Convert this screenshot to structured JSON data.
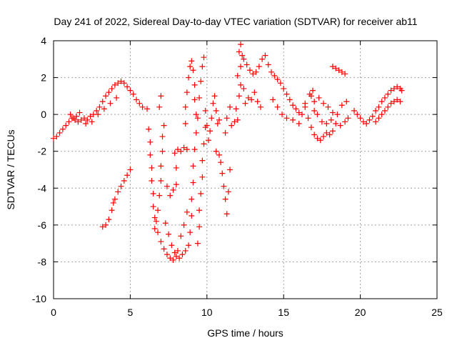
{
  "chart_data": {
    "type": "scatter",
    "title": "Day 241 of 2022, Sidereal Day-to-day VTEC variation (SDTVAR) for receiver ab11",
    "xlabel": "GPS time / hours",
    "ylabel": "SDTVAR / TECUs",
    "xlim": [
      0,
      25
    ],
    "ylim": [
      -10,
      4
    ],
    "xticks": [
      "0",
      "5",
      "10",
      "15",
      "20",
      "25"
    ],
    "yticks": [
      "-10",
      "-8",
      "-6",
      "-4",
      "-2",
      "0",
      "2",
      "4"
    ],
    "grid": true,
    "marker": "plus",
    "marker_color": "#ff0000",
    "series": [
      {
        "name": "ab11",
        "points": [
          [
            0.0,
            -1.3
          ],
          [
            0.2,
            -1.2
          ],
          [
            0.4,
            -1.0
          ],
          [
            0.6,
            -0.8
          ],
          [
            0.8,
            -0.6
          ],
          [
            1.0,
            -0.4
          ],
          [
            1.2,
            -0.2
          ],
          [
            1.4,
            -0.3
          ],
          [
            1.6,
            -0.4
          ],
          [
            1.8,
            -0.3
          ],
          [
            2.0,
            -0.2
          ],
          [
            2.2,
            -0.3
          ],
          [
            2.4,
            -0.1
          ],
          [
            2.6,
            0.0
          ],
          [
            2.8,
            0.2
          ],
          [
            3.0,
            0.4
          ],
          [
            3.2,
            0.7
          ],
          [
            3.4,
            1.0
          ],
          [
            3.6,
            1.2
          ],
          [
            3.8,
            1.4
          ],
          [
            4.0,
            1.6
          ],
          [
            4.2,
            1.7
          ],
          [
            4.4,
            1.8
          ],
          [
            4.6,
            1.7
          ],
          [
            4.8,
            1.5
          ],
          [
            5.0,
            1.3
          ],
          [
            5.2,
            1.1
          ],
          [
            5.4,
            0.8
          ],
          [
            5.6,
            0.6
          ],
          [
            5.8,
            0.4
          ],
          [
            1.1,
            0.0
          ],
          [
            1.3,
            -0.2
          ],
          [
            1.5,
            -0.1
          ],
          [
            1.7,
            0.1
          ],
          [
            2.1,
            -0.5
          ],
          [
            2.5,
            -0.4
          ],
          [
            2.9,
            0.0
          ],
          [
            3.3,
            0.3
          ],
          [
            3.7,
            0.6
          ],
          [
            4.1,
            0.9
          ],
          [
            3.2,
            -6.1
          ],
          [
            3.4,
            -6.0
          ],
          [
            3.6,
            -5.7
          ],
          [
            3.8,
            -5.2
          ],
          [
            3.9,
            -4.8
          ],
          [
            4.0,
            -4.6
          ],
          [
            4.2,
            -4.2
          ],
          [
            4.4,
            -3.9
          ],
          [
            4.6,
            -3.6
          ],
          [
            4.8,
            -3.3
          ],
          [
            5.0,
            -3.0
          ],
          [
            6.1,
            0.3
          ],
          [
            6.2,
            -0.8
          ],
          [
            6.3,
            -1.5
          ],
          [
            6.3,
            -2.2
          ],
          [
            6.4,
            -2.9
          ],
          [
            6.4,
            -3.6
          ],
          [
            6.5,
            -4.3
          ],
          [
            6.5,
            -5.0
          ],
          [
            6.6,
            -5.6
          ],
          [
            6.6,
            -6.2
          ],
          [
            6.7,
            -5.8
          ],
          [
            6.8,
            -5.2
          ],
          [
            6.9,
            -4.4
          ],
          [
            7.0,
            -3.6
          ],
          [
            7.0,
            -2.8
          ],
          [
            7.1,
            -2.0
          ],
          [
            7.1,
            -1.2
          ],
          [
            7.2,
            -0.6
          ],
          [
            6.9,
            0.4
          ],
          [
            7.0,
            1.0
          ],
          [
            6.8,
            -6.4
          ],
          [
            7.0,
            -6.9
          ],
          [
            7.2,
            -7.3
          ],
          [
            7.4,
            -7.6
          ],
          [
            7.6,
            -7.8
          ],
          [
            7.8,
            -7.9
          ],
          [
            8.0,
            -7.7
          ],
          [
            8.2,
            -7.8
          ],
          [
            8.4,
            -7.6
          ],
          [
            8.6,
            -7.4
          ],
          [
            8.8,
            -7.1
          ],
          [
            7.3,
            -5.9
          ],
          [
            7.5,
            -6.5
          ],
          [
            7.7,
            -7.1
          ],
          [
            7.9,
            -7.5
          ],
          [
            8.1,
            -7.4
          ],
          [
            8.3,
            -6.6
          ],
          [
            8.5,
            -6.0
          ],
          [
            8.7,
            -5.3
          ],
          [
            7.4,
            -3.9
          ],
          [
            7.6,
            -4.4
          ],
          [
            7.8,
            -4.1
          ],
          [
            8.0,
            -3.8
          ],
          [
            8.0,
            -2.9
          ],
          [
            7.9,
            -2.1
          ],
          [
            8.1,
            -1.9
          ],
          [
            8.3,
            -2.0
          ],
          [
            8.5,
            -1.8
          ],
          [
            8.7,
            -1.9
          ],
          [
            8.6,
            -0.5
          ],
          [
            8.6,
            0.4
          ],
          [
            8.7,
            1.2
          ],
          [
            8.8,
            2.0
          ],
          [
            8.9,
            2.6
          ],
          [
            9.0,
            2.9
          ],
          [
            9.1,
            2.4
          ],
          [
            9.2,
            1.6
          ],
          [
            9.2,
            0.8
          ],
          [
            9.3,
            0.0
          ],
          [
            8.9,
            -6.4
          ],
          [
            9.0,
            -5.5
          ],
          [
            9.0,
            -4.6
          ],
          [
            9.1,
            -3.7
          ],
          [
            9.1,
            -2.8
          ],
          [
            9.2,
            -1.9
          ],
          [
            9.3,
            -1.0
          ],
          [
            9.4,
            -0.2
          ],
          [
            9.5,
            0.9
          ],
          [
            9.6,
            1.8
          ],
          [
            9.7,
            2.6
          ],
          [
            9.8,
            3.1
          ],
          [
            9.4,
            -7.0
          ],
          [
            9.5,
            -6.1
          ],
          [
            9.5,
            -5.2
          ],
          [
            9.6,
            -4.3
          ],
          [
            9.7,
            -3.4
          ],
          [
            9.7,
            -2.5
          ],
          [
            9.8,
            -1.6
          ],
          [
            9.9,
            -0.7
          ],
          [
            9.9,
            0.2
          ],
          [
            10.0,
            -0.6
          ],
          [
            10.1,
            -1.4
          ],
          [
            10.2,
            -0.9
          ],
          [
            10.3,
            -0.2
          ],
          [
            10.4,
            0.6
          ],
          [
            10.5,
            1.0
          ],
          [
            10.6,
            0.2
          ],
          [
            10.7,
            -0.5
          ],
          [
            10.8,
            -0.3
          ],
          [
            10.6,
            -2.0
          ],
          [
            10.8,
            -2.2
          ],
          [
            10.9,
            -2.6
          ],
          [
            11.0,
            -3.2
          ],
          [
            11.1,
            -3.9
          ],
          [
            11.2,
            -4.6
          ],
          [
            11.3,
            -5.4
          ],
          [
            11.4,
            -4.2
          ],
          [
            11.5,
            -3.0
          ],
          [
            11.2,
            -1.0
          ],
          [
            11.3,
            -0.2
          ],
          [
            11.5,
            0.4
          ],
          [
            11.6,
            -0.6
          ],
          [
            11.8,
            -0.4
          ],
          [
            12.0,
            -0.3
          ],
          [
            11.9,
            0.3
          ],
          [
            12.1,
            1.0
          ],
          [
            12.2,
            1.6
          ],
          [
            12.0,
            2.1
          ],
          [
            12.2,
            2.6
          ],
          [
            12.4,
            3.0
          ],
          [
            12.6,
            2.7
          ],
          [
            12.8,
            2.4
          ],
          [
            13.0,
            2.2
          ],
          [
            13.2,
            2.3
          ],
          [
            13.4,
            2.6
          ],
          [
            13.6,
            3.0
          ],
          [
            13.8,
            3.2
          ],
          [
            14.0,
            2.7
          ],
          [
            12.1,
            3.4
          ],
          [
            12.2,
            3.8
          ],
          [
            12.3,
            3.2
          ],
          [
            12.4,
            1.4
          ],
          [
            12.5,
            0.6
          ],
          [
            12.7,
            0.9
          ],
          [
            12.9,
            0.8
          ],
          [
            13.1,
            1.2
          ],
          [
            13.3,
            0.7
          ],
          [
            13.5,
            0.4
          ],
          [
            14.2,
            2.3
          ],
          [
            14.4,
            2.1
          ],
          [
            14.6,
            1.9
          ],
          [
            14.8,
            1.7
          ],
          [
            15.0,
            1.4
          ],
          [
            15.2,
            1.1
          ],
          [
            15.4,
            0.8
          ],
          [
            15.6,
            0.5
          ],
          [
            15.8,
            0.3
          ],
          [
            16.0,
            0.1
          ],
          [
            14.3,
            0.8
          ],
          [
            14.6,
            0.4
          ],
          [
            14.9,
            0.0
          ],
          [
            15.2,
            -0.2
          ],
          [
            15.6,
            -0.3
          ],
          [
            16.0,
            -0.5
          ],
          [
            16.2,
            0.0
          ],
          [
            16.4,
            0.6
          ],
          [
            16.7,
            1.1
          ],
          [
            16.9,
            1.3
          ],
          [
            16.4,
            0.4
          ],
          [
            16.6,
            -0.2
          ],
          [
            16.8,
            -0.7
          ],
          [
            17.0,
            -1.1
          ],
          [
            17.2,
            -1.3
          ],
          [
            17.4,
            -1.4
          ],
          [
            17.6,
            -1.2
          ],
          [
            17.8,
            -1.0
          ],
          [
            18.0,
            -1.1
          ],
          [
            18.2,
            -0.9
          ],
          [
            17.0,
            0.2
          ],
          [
            17.2,
            0.0
          ],
          [
            17.5,
            -0.4
          ],
          [
            17.8,
            -0.5
          ],
          [
            18.1,
            -0.3
          ],
          [
            18.4,
            -0.5
          ],
          [
            18.7,
            -0.6
          ],
          [
            19.0,
            -0.4
          ],
          [
            19.2,
            -0.2
          ],
          [
            16.8,
            1.0
          ],
          [
            17.0,
            0.7
          ],
          [
            17.3,
            0.9
          ],
          [
            17.6,
            0.6
          ],
          [
            17.9,
            0.4
          ],
          [
            18.2,
            0.1
          ],
          [
            18.5,
            0.0
          ],
          [
            18.8,
            0.5
          ],
          [
            19.1,
            0.7
          ],
          [
            18.2,
            2.6
          ],
          [
            18.4,
            2.5
          ],
          [
            18.6,
            2.4
          ],
          [
            18.8,
            2.3
          ],
          [
            19.0,
            2.2
          ],
          [
            19.6,
            0.2
          ],
          [
            19.8,
            0.0
          ],
          [
            20.0,
            -0.2
          ],
          [
            20.2,
            -0.4
          ],
          [
            20.4,
            -0.5
          ],
          [
            20.6,
            -0.3
          ],
          [
            20.8,
            -0.1
          ],
          [
            21.0,
            0.2
          ],
          [
            21.2,
            0.4
          ],
          [
            21.4,
            0.7
          ],
          [
            21.6,
            0.9
          ],
          [
            21.8,
            1.1
          ],
          [
            22.0,
            1.3
          ],
          [
            22.2,
            1.4
          ],
          [
            22.4,
            1.5
          ],
          [
            22.6,
            1.4
          ],
          [
            22.7,
            1.3
          ],
          [
            21.0,
            -0.4
          ],
          [
            21.2,
            -0.2
          ],
          [
            21.4,
            0.0
          ],
          [
            21.6,
            0.2
          ],
          [
            21.8,
            0.4
          ],
          [
            22.0,
            0.6
          ],
          [
            22.2,
            0.7
          ],
          [
            22.4,
            0.8
          ],
          [
            22.6,
            0.7
          ]
        ]
      }
    ]
  }
}
